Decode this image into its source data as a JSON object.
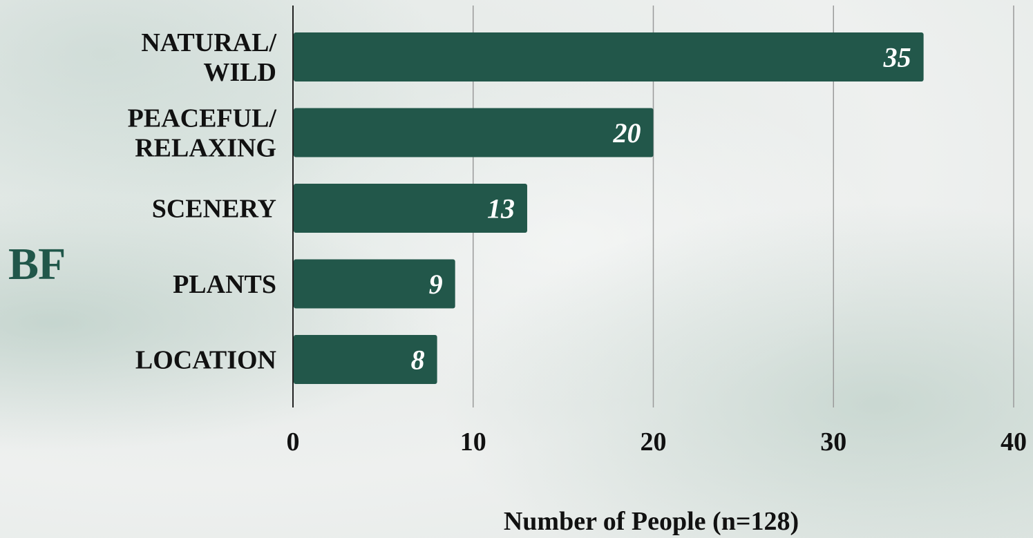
{
  "side_label": "BF",
  "chart_data": {
    "type": "bar",
    "orientation": "horizontal",
    "categories": [
      [
        "NATURAL/",
        "WILD"
      ],
      [
        "PEACEFUL/",
        "RELAXING"
      ],
      [
        "SCENERY"
      ],
      [
        "PLANTS"
      ],
      [
        "LOCATION"
      ]
    ],
    "values": [
      35,
      20,
      13,
      9,
      8
    ],
    "xlabel": "Number of People (n=128)",
    "ylabel": "",
    "xlim": [
      0,
      40
    ],
    "xticks": [
      0,
      10,
      20,
      30,
      40
    ],
    "grid": true,
    "legend": "none",
    "bar_color": "#22574a",
    "label_color": "#ffffff"
  }
}
